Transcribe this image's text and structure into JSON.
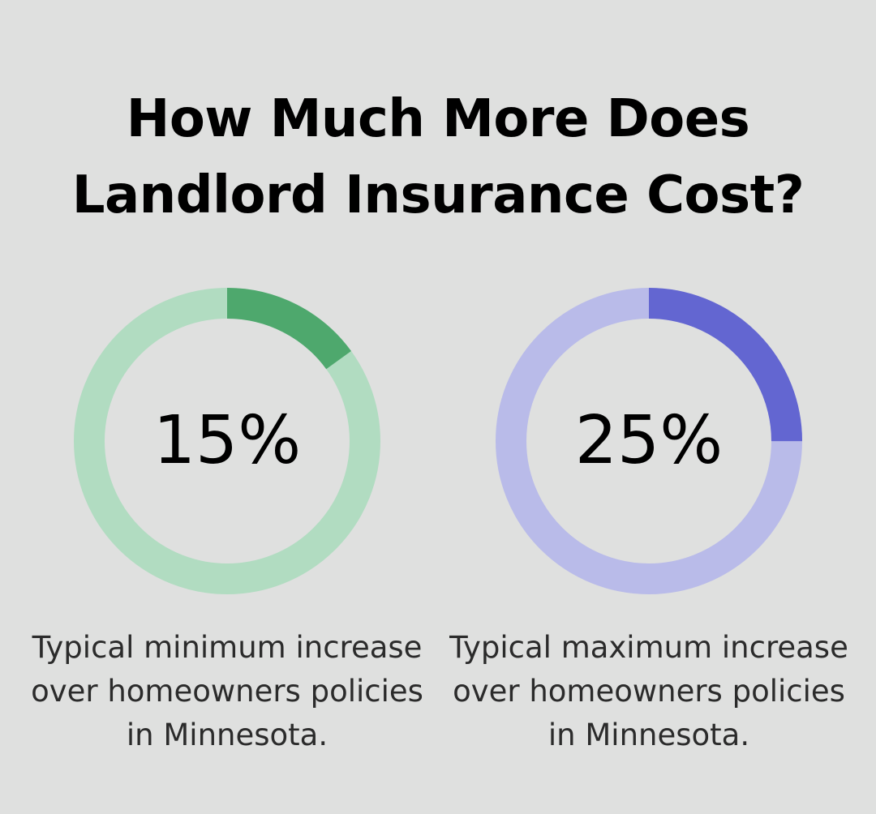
{
  "chart_data": [
    {
      "type": "pie",
      "value": 15,
      "max": 100,
      "value_label": "15%",
      "caption": [
        "Typical minimum increase",
        "over homeowners policies",
        "in Minnesota."
      ],
      "colors": {
        "fill": "#4ea86d",
        "track": "#b1dcc1"
      }
    },
    {
      "type": "pie",
      "value": 25,
      "max": 100,
      "value_label": "25%",
      "caption": [
        "Typical maximum increase",
        "over homeowners policies",
        "in Minnesota."
      ],
      "colors": {
        "fill": "#6366d1",
        "track": "#b9bbe9"
      }
    }
  ],
  "title": [
    "How Much More Does",
    "Landlord Insurance Cost?"
  ],
  "colors": {
    "background": "#dfe0df",
    "text": "#000000"
  }
}
